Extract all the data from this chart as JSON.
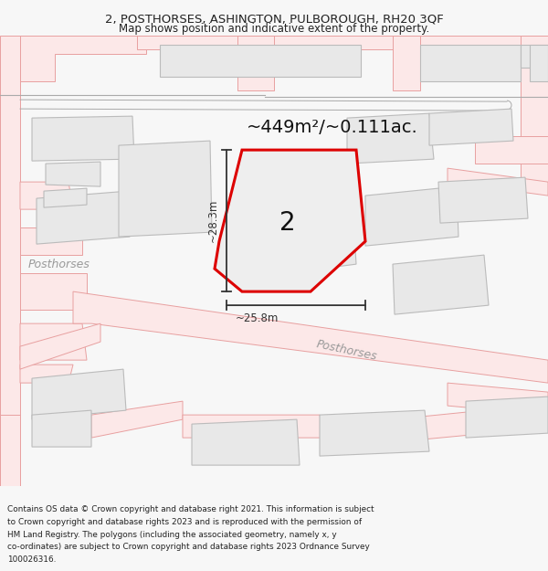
{
  "title_line1": "2, POSTHORSES, ASHINGTON, PULBOROUGH, RH20 3QF",
  "title_line2": "Map shows position and indicative extent of the property.",
  "area_text": "~449m²/~0.111ac.",
  "label_number": "2",
  "dim_width": "~25.8m",
  "dim_height": "~28.3m",
  "label_posthorses_road": "Posthorses",
  "label_posthorses_left": "Posthorses",
  "footer_lines": [
    "Contains OS data © Crown copyright and database right 2021. This information is subject",
    "to Crown copyright and database rights 2023 and is reproduced with the permission of",
    "HM Land Registry. The polygons (including the associated geometry, namely x, y",
    "co-ordinates) are subject to Crown copyright and database rights 2023 Ordnance Survey",
    "100026316."
  ],
  "bg_color": "#f7f7f7",
  "map_bg": "#ffffff",
  "road_fill": "#fce8e8",
  "road_edge": "#e8a0a0",
  "building_fill": "#e8e8e8",
  "building_edge": "#bbbbbb",
  "road_line_color": "#e8a0a0",
  "gray_line_color": "#aaaaaa",
  "plot_fill": "#eeeeee",
  "plot_edge": "#dd0000",
  "dim_color": "#333333",
  "text_dark": "#222222",
  "text_gray": "#999999"
}
